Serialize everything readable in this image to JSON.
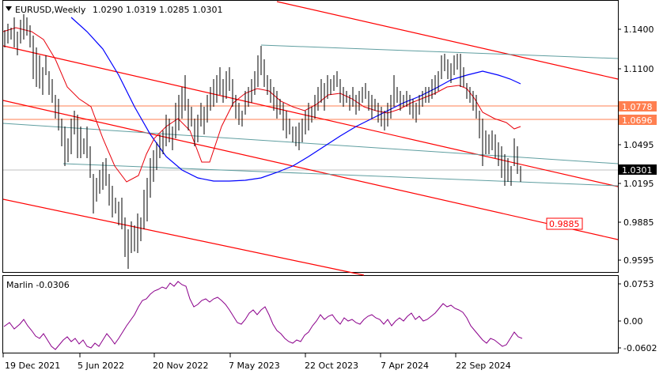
{
  "header": {
    "symbol": "EURUSD,Weekly",
    "ohlc": "1.0290 1.0319 1.0285 1.0301"
  },
  "price_axis": {
    "labels": [
      "1.1400",
      "1.1100",
      "1.0778",
      "1.0696",
      "1.0495",
      "1.0301",
      "1.0195",
      "0.9885",
      "0.9595"
    ]
  },
  "price_tags": {
    "current": "1.0301",
    "level_1": "1.0778",
    "level_2": "1.0696",
    "target": "0.9885"
  },
  "indicator": {
    "title": "Marlin -0.0306",
    "labels": [
      "0.0753",
      "0.00",
      "-0.0602"
    ]
  },
  "time_axis": {
    "labels": [
      "19 Dec 2021",
      "5 Jun 2022",
      "20 Nov 2022",
      "7 May 2023",
      "22 Oct 2023",
      "7 Apr 2024",
      "22 Sep 2024"
    ]
  },
  "colors": {
    "price_line": "#000000",
    "ma_red": "#e8000b",
    "ma_blue": "#0000ff",
    "channel_red": "#ff0000",
    "channel_teal": "#5f9ea0",
    "level_orange": "#ff7f50",
    "oscillator": "#8b008b"
  },
  "chart_data": {
    "type": "line",
    "series": [
      {
        "name": "EURUSD,Weekly",
        "x": [
          "2021-12-19",
          "2022-06-05",
          "2022-11-20",
          "2023-05-07",
          "2023-10-22",
          "2024-04-07",
          "2024-09-22",
          "2025-01-05"
        ],
        "values": [
          1.132,
          1.072,
          1.04,
          1.101,
          1.059,
          1.083,
          1.118,
          1.03
        ]
      },
      {
        "name": "Marlin",
        "x": [
          "2021-12-19",
          "2022-06-05",
          "2022-11-20",
          "2023-05-07",
          "2023-10-22",
          "2024-04-07",
          "2024-09-22",
          "2025-01-05"
        ],
        "values": [
          -0.01,
          -0.04,
          0.06,
          0.02,
          -0.04,
          0.005,
          0.02,
          -0.0306
        ]
      }
    ],
    "ylim": [
      0.95,
      1.16
    ]
  }
}
